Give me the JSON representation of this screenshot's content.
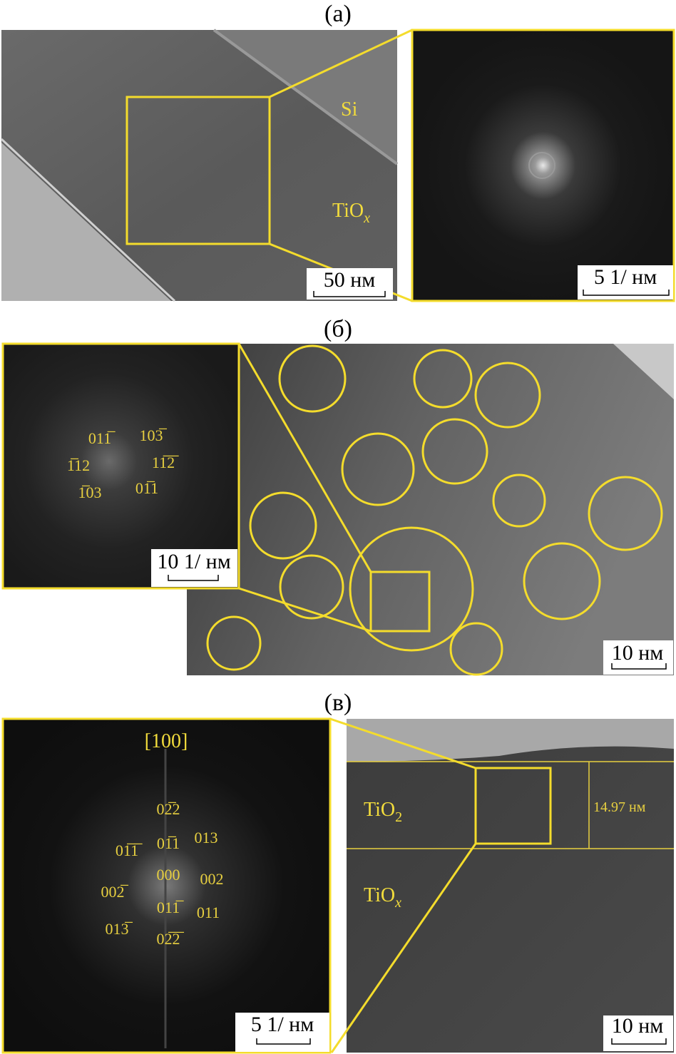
{
  "panel_a": {
    "label": "(а)",
    "si": "Si",
    "tiox": {
      "text": "TiO",
      "sub": "x"
    },
    "scale_bar_image": "50 нм",
    "scale_bar_fft": "5 1/ нм"
  },
  "panel_b": {
    "label": "(б)",
    "fft_indices": [
      "011̅",
      "103̅",
      "1̅12",
      "11̅2̅",
      "1̅03",
      "01̅1"
    ],
    "scale_bar_fft": "10 1/ нм",
    "scale_bar_image": "10 нм"
  },
  "panel_c": {
    "label": "(в)",
    "zone_axis": "[100]",
    "fft_indices": [
      "02̅2",
      "01̅1̅",
      "01̅1",
      "013",
      "000",
      "002",
      "002̅",
      "011̅",
      "011",
      "013̅",
      "02̅2̅"
    ],
    "tio2": {
      "text": "TiO",
      "sub": "2"
    },
    "tiox": {
      "text": "TiO",
      "sub": "x"
    },
    "thickness": "14.97 нм",
    "scale_bar_fft": "5 1/ нм",
    "scale_bar_image": "10 нм"
  }
}
